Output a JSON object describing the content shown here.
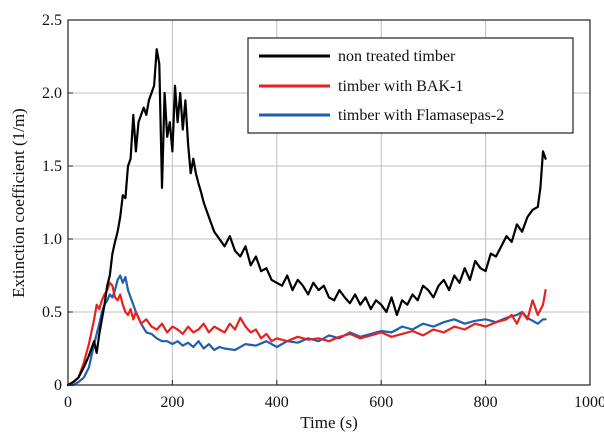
{
  "chart_data": {
    "type": "line",
    "title": "",
    "xlabel": "Time (s)",
    "ylabel": "Extinction coefficient (1/m)",
    "xlim": [
      0,
      1000
    ],
    "ylim": [
      0,
      2.5
    ],
    "xticks": [
      0,
      200,
      400,
      600,
      800,
      1000
    ],
    "yticks": [
      0,
      0.5,
      1.0,
      1.5,
      2.0,
      2.5
    ],
    "xtick_labels": [
      "0",
      "200",
      "400",
      "600",
      "800",
      "1000"
    ],
    "ytick_labels": [
      "0",
      "0.5",
      "1.0",
      "1.5",
      "2.0",
      "2.5"
    ],
    "grid": true,
    "legend_position": "top-right",
    "series": [
      {
        "name": "non treated timber",
        "color": "#000000",
        "x": [
          0,
          10,
          20,
          30,
          40,
          50,
          55,
          60,
          65,
          70,
          75,
          80,
          85,
          90,
          95,
          100,
          105,
          110,
          115,
          120,
          125,
          130,
          135,
          140,
          145,
          150,
          155,
          160,
          165,
          170,
          175,
          180,
          185,
          190,
          195,
          200,
          205,
          210,
          215,
          220,
          225,
          230,
          235,
          240,
          245,
          250,
          255,
          260,
          270,
          280,
          290,
          300,
          310,
          320,
          330,
          340,
          350,
          360,
          370,
          380,
          390,
          400,
          410,
          420,
          430,
          440,
          450,
          460,
          470,
          480,
          490,
          500,
          510,
          520,
          530,
          540,
          550,
          560,
          570,
          580,
          590,
          600,
          610,
          620,
          630,
          640,
          650,
          660,
          670,
          680,
          690,
          700,
          710,
          720,
          730,
          740,
          750,
          760,
          770,
          780,
          790,
          800,
          810,
          820,
          830,
          840,
          850,
          860,
          870,
          880,
          890,
          900,
          905,
          910,
          915
        ],
        "y": [
          0,
          0.02,
          0.05,
          0.12,
          0.2,
          0.3,
          0.22,
          0.35,
          0.45,
          0.55,
          0.68,
          0.75,
          0.9,
          0.98,
          1.05,
          1.15,
          1.3,
          1.28,
          1.5,
          1.55,
          1.85,
          1.6,
          1.8,
          1.85,
          1.9,
          1.85,
          1.95,
          2.0,
          2.05,
          2.3,
          2.2,
          1.35,
          2.0,
          1.7,
          1.8,
          1.6,
          2.05,
          1.8,
          2.0,
          1.75,
          1.95,
          1.65,
          1.45,
          1.55,
          1.45,
          1.38,
          1.32,
          1.25,
          1.15,
          1.05,
          1.0,
          0.95,
          1.02,
          0.92,
          0.88,
          0.95,
          0.82,
          0.88,
          0.78,
          0.8,
          0.72,
          0.7,
          0.68,
          0.75,
          0.65,
          0.72,
          0.68,
          0.62,
          0.7,
          0.65,
          0.68,
          0.6,
          0.58,
          0.65,
          0.6,
          0.56,
          0.62,
          0.55,
          0.6,
          0.52,
          0.58,
          0.55,
          0.5,
          0.6,
          0.48,
          0.58,
          0.55,
          0.62,
          0.58,
          0.68,
          0.65,
          0.6,
          0.68,
          0.72,
          0.65,
          0.75,
          0.7,
          0.8,
          0.72,
          0.85,
          0.8,
          0.78,
          0.9,
          0.88,
          0.95,
          1.02,
          0.98,
          1.1,
          1.05,
          1.15,
          1.2,
          1.22,
          1.35,
          1.6,
          1.55
        ]
      },
      {
        "name": "timber with BAK-1",
        "color": "#e8211e",
        "x": [
          0,
          10,
          20,
          30,
          40,
          50,
          55,
          60,
          65,
          70,
          75,
          80,
          85,
          90,
          95,
          100,
          105,
          110,
          115,
          120,
          125,
          130,
          140,
          150,
          160,
          170,
          180,
          190,
          200,
          210,
          220,
          230,
          240,
          250,
          260,
          270,
          280,
          290,
          300,
          310,
          320,
          330,
          340,
          350,
          360,
          370,
          380,
          390,
          400,
          420,
          440,
          460,
          480,
          500,
          520,
          540,
          560,
          580,
          600,
          620,
          640,
          660,
          680,
          700,
          720,
          740,
          760,
          780,
          800,
          820,
          840,
          850,
          860,
          870,
          880,
          890,
          900,
          910,
          915
        ],
        "y": [
          0,
          0.02,
          0.05,
          0.15,
          0.28,
          0.45,
          0.55,
          0.52,
          0.58,
          0.62,
          0.65,
          0.7,
          0.68,
          0.6,
          0.58,
          0.62,
          0.55,
          0.5,
          0.48,
          0.52,
          0.45,
          0.5,
          0.42,
          0.45,
          0.4,
          0.38,
          0.42,
          0.36,
          0.4,
          0.38,
          0.35,
          0.4,
          0.36,
          0.38,
          0.42,
          0.36,
          0.4,
          0.38,
          0.36,
          0.42,
          0.38,
          0.46,
          0.4,
          0.36,
          0.38,
          0.32,
          0.35,
          0.3,
          0.32,
          0.3,
          0.33,
          0.31,
          0.32,
          0.3,
          0.33,
          0.35,
          0.32,
          0.34,
          0.36,
          0.33,
          0.35,
          0.37,
          0.34,
          0.38,
          0.36,
          0.4,
          0.38,
          0.42,
          0.4,
          0.43,
          0.45,
          0.48,
          0.42,
          0.5,
          0.45,
          0.58,
          0.48,
          0.55,
          0.65
        ]
      },
      {
        "name": "timber with Flamasepas-2",
        "color": "#1f5fae",
        "x": [
          0,
          10,
          20,
          30,
          40,
          50,
          60,
          65,
          70,
          75,
          80,
          85,
          90,
          95,
          100,
          105,
          110,
          115,
          120,
          125,
          130,
          140,
          150,
          160,
          170,
          180,
          190,
          200,
          210,
          220,
          230,
          240,
          250,
          260,
          270,
          280,
          290,
          300,
          320,
          340,
          360,
          380,
          400,
          420,
          440,
          460,
          480,
          500,
          520,
          540,
          560,
          580,
          600,
          620,
          640,
          660,
          680,
          700,
          720,
          740,
          760,
          780,
          800,
          820,
          840,
          860,
          870,
          880,
          890,
          900,
          910,
          915
        ],
        "y": [
          0,
          0.0,
          0.02,
          0.05,
          0.12,
          0.28,
          0.42,
          0.5,
          0.55,
          0.58,
          0.62,
          0.6,
          0.65,
          0.72,
          0.75,
          0.7,
          0.74,
          0.65,
          0.6,
          0.55,
          0.5,
          0.42,
          0.36,
          0.35,
          0.32,
          0.3,
          0.3,
          0.28,
          0.3,
          0.27,
          0.29,
          0.26,
          0.3,
          0.25,
          0.28,
          0.24,
          0.26,
          0.25,
          0.24,
          0.28,
          0.27,
          0.3,
          0.26,
          0.3,
          0.29,
          0.32,
          0.3,
          0.34,
          0.32,
          0.36,
          0.33,
          0.35,
          0.37,
          0.36,
          0.4,
          0.38,
          0.42,
          0.4,
          0.43,
          0.45,
          0.42,
          0.44,
          0.45,
          0.43,
          0.46,
          0.48,
          0.5,
          0.46,
          0.44,
          0.42,
          0.45,
          0.45
        ]
      }
    ]
  }
}
